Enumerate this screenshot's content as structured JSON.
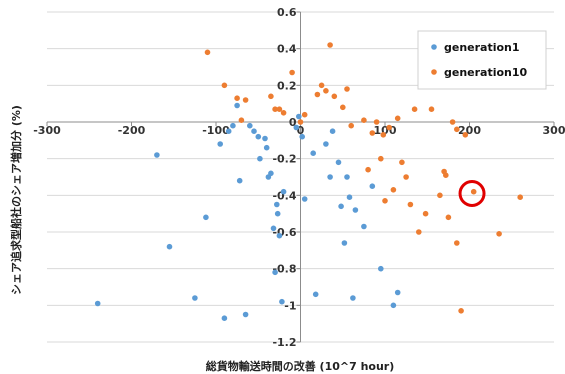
{
  "chart_data": {
    "type": "scatter",
    "xlabel": "総貨物輸送時間の改善 (10^7 hour)",
    "ylabel": "シェア追求型船社のシェア増加分 (%)",
    "xlim": [
      -300,
      300
    ],
    "ylim": [
      -1.2,
      0.6
    ],
    "x_ticks": [
      -300,
      -200,
      -100,
      0,
      100,
      200,
      300
    ],
    "x_tick_labels": [
      "-300",
      "-200",
      "-100",
      "0",
      "100",
      "200",
      "300"
    ],
    "y_ticks": [
      0.6,
      0.4,
      0.2,
      0,
      -0.2,
      -0.4,
      -0.6,
      -0.8,
      -1,
      -1.2
    ],
    "y_tick_labels": [
      "0.6",
      "0.4",
      "0.2",
      "0",
      "-0.2",
      "-0.4",
      "-0.6",
      "-0.8",
      "-1",
      "-1.2"
    ],
    "grid": "horizontal",
    "legend_position": "top-right",
    "series": [
      {
        "name": "generation1",
        "color": "#5b9bd5",
        "points": [
          [
            -240,
            -0.99
          ],
          [
            -170,
            -0.18
          ],
          [
            -155,
            -0.68
          ],
          [
            -125,
            -0.96
          ],
          [
            -112,
            -0.52
          ],
          [
            -95,
            -0.12
          ],
          [
            -85,
            -0.05
          ],
          [
            -80,
            -0.02
          ],
          [
            -75,
            0.09
          ],
          [
            -72,
            -0.32
          ],
          [
            -65,
            -1.05
          ],
          [
            -60,
            -0.02
          ],
          [
            -55,
            -0.05
          ],
          [
            -50,
            -0.08
          ],
          [
            -48,
            -0.2
          ],
          [
            -42,
            -0.09
          ],
          [
            -40,
            -0.14
          ],
          [
            -38,
            -0.3
          ],
          [
            -35,
            -0.28
          ],
          [
            -32,
            -0.58
          ],
          [
            -30,
            -0.82
          ],
          [
            -28,
            -0.45
          ],
          [
            -27,
            -0.5
          ],
          [
            -25,
            -0.62
          ],
          [
            -22,
            -0.98
          ],
          [
            -20,
            -0.38
          ],
          [
            -5,
            -0.03
          ],
          [
            -2,
            0.03
          ],
          [
            2,
            -0.08
          ],
          [
            5,
            -0.42
          ],
          [
            15,
            -0.17
          ],
          [
            18,
            -0.94
          ],
          [
            30,
            -0.12
          ],
          [
            35,
            -0.3
          ],
          [
            38,
            -0.05
          ],
          [
            45,
            -0.22
          ],
          [
            48,
            -0.46
          ],
          [
            52,
            -0.66
          ],
          [
            55,
            -0.3
          ],
          [
            58,
            -0.41
          ],
          [
            62,
            -0.96
          ],
          [
            65,
            -0.48
          ],
          [
            75,
            -0.57
          ],
          [
            85,
            -0.35
          ],
          [
            95,
            -0.8
          ],
          [
            110,
            -1.0
          ],
          [
            115,
            -0.93
          ],
          [
            -90,
            -1.07
          ]
        ]
      },
      {
        "name": "generation10",
        "color": "#ed7d31",
        "points": [
          [
            -110,
            0.38
          ],
          [
            -90,
            0.2
          ],
          [
            -75,
            0.13
          ],
          [
            -70,
            0.01
          ],
          [
            -65,
            0.12
          ],
          [
            -35,
            0.14
          ],
          [
            -30,
            0.07
          ],
          [
            -25,
            0.07
          ],
          [
            -20,
            0.05
          ],
          [
            -10,
            0.27
          ],
          [
            0,
            0.0
          ],
          [
            5,
            0.04
          ],
          [
            20,
            0.15
          ],
          [
            25,
            0.2
          ],
          [
            30,
            0.17
          ],
          [
            35,
            0.42
          ],
          [
            40,
            0.14
          ],
          [
            50,
            0.08
          ],
          [
            55,
            0.18
          ],
          [
            60,
            -0.02
          ],
          [
            75,
            0.01
          ],
          [
            80,
            -0.26
          ],
          [
            85,
            -0.06
          ],
          [
            90,
            0.0
          ],
          [
            95,
            -0.2
          ],
          [
            100,
            -0.43
          ],
          [
            105,
            -0.03
          ],
          [
            110,
            -0.37
          ],
          [
            115,
            0.02
          ],
          [
            120,
            -0.22
          ],
          [
            125,
            -0.3
          ],
          [
            130,
            -0.45
          ],
          [
            135,
            0.07
          ],
          [
            140,
            -0.6
          ],
          [
            148,
            -0.5
          ],
          [
            155,
            0.07
          ],
          [
            165,
            -0.4
          ],
          [
            170,
            -0.27
          ],
          [
            175,
            -0.52
          ],
          [
            180,
            0.0
          ],
          [
            185,
            -0.66
          ],
          [
            190,
            -1.03
          ],
          [
            195,
            -0.07
          ],
          [
            205,
            -0.38
          ],
          [
            235,
            -0.61
          ],
          [
            260,
            -0.41
          ],
          [
            172,
            -0.29
          ],
          [
            185,
            -0.04
          ],
          [
            98,
            -0.07
          ]
        ]
      }
    ],
    "annotations": [
      {
        "type": "circle",
        "x": 203,
        "y": -0.39,
        "color": "#e00000"
      }
    ]
  }
}
